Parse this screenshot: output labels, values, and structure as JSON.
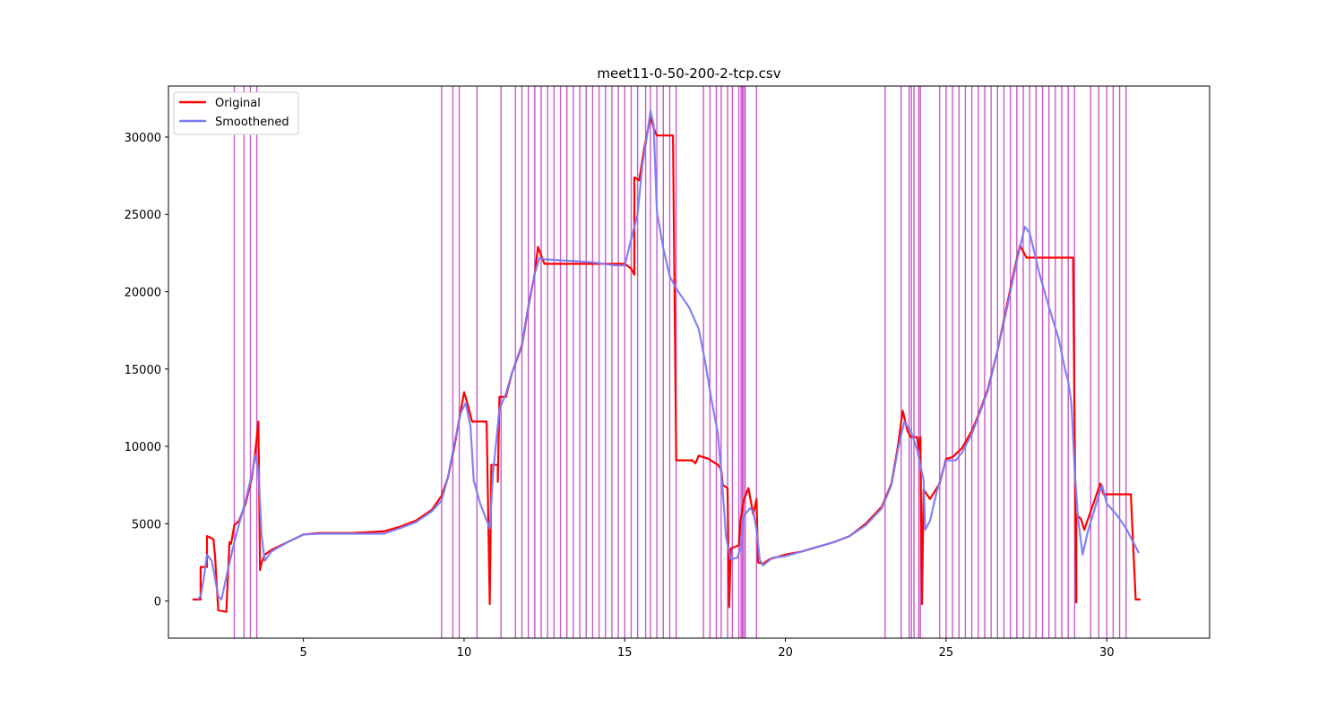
{
  "chart_data": {
    "type": "line",
    "title": "meet11-0-50-200-2-tcp.csv",
    "xlabel": "",
    "ylabel": "",
    "xlim": [
      0.8,
      33.2
    ],
    "ylim": [
      -2400,
      33300
    ],
    "x_ticks": [
      5,
      10,
      15,
      20,
      25,
      30
    ],
    "y_ticks": [
      0,
      5000,
      10000,
      15000,
      20000,
      25000,
      30000
    ],
    "legend": {
      "placement": "top-left"
    },
    "grid": false,
    "series": [
      {
        "name": "Original",
        "color": "#ff0000",
        "points": [
          [
            1.55,
            100
          ],
          [
            1.8,
            100
          ],
          [
            1.8,
            2200
          ],
          [
            2.0,
            2200
          ],
          [
            2.0,
            4200
          ],
          [
            2.2,
            4000
          ],
          [
            2.25,
            2900
          ],
          [
            2.35,
            -600
          ],
          [
            2.6,
            -700
          ],
          [
            2.7,
            3800
          ],
          [
            2.75,
            3700
          ],
          [
            2.85,
            4900
          ],
          [
            3.0,
            5200
          ],
          [
            3.2,
            6300
          ],
          [
            3.4,
            8000
          ],
          [
            3.5,
            9600
          ],
          [
            3.55,
            10600
          ],
          [
            3.6,
            11600
          ],
          [
            3.65,
            2000
          ],
          [
            3.7,
            2500
          ],
          [
            3.8,
            3000
          ],
          [
            4.0,
            3300
          ],
          [
            4.5,
            3800
          ],
          [
            5.0,
            4300
          ],
          [
            5.5,
            4400
          ],
          [
            6.5,
            4400
          ],
          [
            7.5,
            4500
          ],
          [
            8.0,
            4800
          ],
          [
            8.5,
            5200
          ],
          [
            9.0,
            5900
          ],
          [
            9.3,
            6800
          ],
          [
            9.5,
            8000
          ],
          [
            9.7,
            10000
          ],
          [
            9.85,
            11800
          ],
          [
            10.0,
            13500
          ],
          [
            10.1,
            12800
          ],
          [
            10.25,
            11600
          ],
          [
            10.7,
            11600
          ],
          [
            10.8,
            -200
          ],
          [
            10.85,
            8800
          ],
          [
            11.05,
            8800
          ],
          [
            11.05,
            7700
          ],
          [
            11.1,
            13200
          ],
          [
            11.3,
            13200
          ],
          [
            11.5,
            14800
          ],
          [
            11.8,
            16500
          ],
          [
            12.0,
            19000
          ],
          [
            12.2,
            21200
          ],
          [
            12.3,
            22900
          ],
          [
            12.5,
            21800
          ],
          [
            15.0,
            21800
          ],
          [
            15.2,
            21500
          ],
          [
            15.3,
            21100
          ],
          [
            15.3,
            27400
          ],
          [
            15.45,
            27200
          ],
          [
            15.6,
            29200
          ],
          [
            15.8,
            31300
          ],
          [
            15.95,
            30300
          ],
          [
            16.0,
            30100
          ],
          [
            16.5,
            30100
          ],
          [
            16.6,
            9100
          ],
          [
            17.1,
            9100
          ],
          [
            17.2,
            8900
          ],
          [
            17.3,
            9400
          ],
          [
            17.6,
            9200
          ],
          [
            17.9,
            8800
          ],
          [
            18.0,
            8500
          ],
          [
            18.05,
            7500
          ],
          [
            18.2,
            7300
          ],
          [
            18.25,
            -400
          ],
          [
            18.3,
            3400
          ],
          [
            18.55,
            3600
          ],
          [
            18.6,
            5200
          ],
          [
            18.7,
            6500
          ],
          [
            18.85,
            7300
          ],
          [
            19.0,
            5600
          ],
          [
            19.1,
            6600
          ],
          [
            19.15,
            2500
          ],
          [
            19.3,
            2400
          ],
          [
            19.5,
            2700
          ],
          [
            20.0,
            3000
          ],
          [
            20.5,
            3200
          ],
          [
            21.0,
            3500
          ],
          [
            21.5,
            3800
          ],
          [
            22.0,
            4200
          ],
          [
            22.5,
            5000
          ],
          [
            23.0,
            6100
          ],
          [
            23.3,
            7600
          ],
          [
            23.5,
            10000
          ],
          [
            23.65,
            12300
          ],
          [
            23.8,
            11000
          ],
          [
            23.9,
            10600
          ],
          [
            24.1,
            10600
          ],
          [
            24.15,
            9800
          ],
          [
            24.2,
            10600
          ],
          [
            24.25,
            -200
          ],
          [
            24.3,
            7200
          ],
          [
            24.5,
            6600
          ],
          [
            24.8,
            7600
          ],
          [
            25.0,
            9200
          ],
          [
            25.2,
            9300
          ],
          [
            25.5,
            9900
          ],
          [
            25.8,
            11000
          ],
          [
            26.0,
            12000
          ],
          [
            26.3,
            13700
          ],
          [
            26.6,
            16200
          ],
          [
            26.9,
            19200
          ],
          [
            27.1,
            21200
          ],
          [
            27.3,
            23000
          ],
          [
            27.5,
            22200
          ],
          [
            28.95,
            22200
          ],
          [
            29.05,
            -100
          ],
          [
            29.05,
            5600
          ],
          [
            29.2,
            5300
          ],
          [
            29.3,
            4600
          ],
          [
            29.5,
            5800
          ],
          [
            29.8,
            7600
          ],
          [
            29.9,
            6900
          ],
          [
            30.75,
            6900
          ],
          [
            30.9,
            100
          ],
          [
            31.05,
            100
          ]
        ]
      },
      {
        "name": "Smoothened",
        "color": "#7b7bf5",
        "points": [
          [
            1.7,
            100
          ],
          [
            1.8,
            300
          ],
          [
            1.9,
            1500
          ],
          [
            2.0,
            3000
          ],
          [
            2.15,
            2600
          ],
          [
            2.35,
            300
          ],
          [
            2.45,
            100
          ],
          [
            2.65,
            2000
          ],
          [
            2.85,
            3800
          ],
          [
            3.0,
            5000
          ],
          [
            3.2,
            6500
          ],
          [
            3.4,
            8200
          ],
          [
            3.5,
            9400
          ],
          [
            3.6,
            8500
          ],
          [
            3.7,
            4200
          ],
          [
            3.8,
            2600
          ],
          [
            4.0,
            3200
          ],
          [
            4.5,
            3800
          ],
          [
            5.0,
            4300
          ],
          [
            5.5,
            4350
          ],
          [
            7.5,
            4350
          ],
          [
            8.0,
            4700
          ],
          [
            8.5,
            5100
          ],
          [
            9.0,
            5800
          ],
          [
            9.3,
            6500
          ],
          [
            9.5,
            8000
          ],
          [
            9.7,
            10200
          ],
          [
            9.9,
            12200
          ],
          [
            10.05,
            12800
          ],
          [
            10.2,
            11300
          ],
          [
            10.3,
            7800
          ],
          [
            10.5,
            6300
          ],
          [
            10.8,
            4700
          ],
          [
            10.9,
            8200
          ],
          [
            11.1,
            12400
          ],
          [
            11.3,
            13400
          ],
          [
            11.5,
            14800
          ],
          [
            11.8,
            16600
          ],
          [
            12.0,
            19100
          ],
          [
            12.2,
            21200
          ],
          [
            12.35,
            22200
          ],
          [
            12.5,
            22100
          ],
          [
            14.0,
            21900
          ],
          [
            14.7,
            21700
          ],
          [
            15.0,
            21700
          ],
          [
            15.2,
            23400
          ],
          [
            15.4,
            25000
          ],
          [
            15.55,
            28200
          ],
          [
            15.7,
            30200
          ],
          [
            15.8,
            31700
          ],
          [
            15.9,
            30800
          ],
          [
            16.0,
            25200
          ],
          [
            16.2,
            22800
          ],
          [
            16.4,
            21000
          ],
          [
            16.6,
            20200
          ],
          [
            17.0,
            19000
          ],
          [
            17.3,
            17600
          ],
          [
            17.5,
            15500
          ],
          [
            17.7,
            13000
          ],
          [
            17.9,
            10800
          ],
          [
            18.0,
            8300
          ],
          [
            18.1,
            5700
          ],
          [
            18.15,
            4200
          ],
          [
            18.3,
            2700
          ],
          [
            18.5,
            2800
          ],
          [
            18.6,
            3400
          ],
          [
            18.7,
            5500
          ],
          [
            18.9,
            6000
          ],
          [
            19.0,
            5800
          ],
          [
            19.1,
            4600
          ],
          [
            19.2,
            2700
          ],
          [
            19.3,
            2300
          ],
          [
            19.6,
            2800
          ],
          [
            20.0,
            2900
          ],
          [
            20.5,
            3200
          ],
          [
            21.0,
            3500
          ],
          [
            21.5,
            3800
          ],
          [
            22.0,
            4200
          ],
          [
            22.5,
            4900
          ],
          [
            23.0,
            6000
          ],
          [
            23.3,
            7500
          ],
          [
            23.5,
            9800
          ],
          [
            23.7,
            11600
          ],
          [
            23.9,
            11000
          ],
          [
            24.1,
            9800
          ],
          [
            24.3,
            7800
          ],
          [
            24.35,
            4600
          ],
          [
            24.5,
            5200
          ],
          [
            24.7,
            7000
          ],
          [
            25.0,
            9100
          ],
          [
            25.3,
            9100
          ],
          [
            25.5,
            9600
          ],
          [
            25.8,
            10800
          ],
          [
            26.0,
            11900
          ],
          [
            26.3,
            13600
          ],
          [
            26.6,
            16200
          ],
          [
            26.9,
            19000
          ],
          [
            27.1,
            21000
          ],
          [
            27.3,
            22900
          ],
          [
            27.45,
            24200
          ],
          [
            27.6,
            23800
          ],
          [
            27.9,
            21200
          ],
          [
            28.2,
            19000
          ],
          [
            28.5,
            17000
          ],
          [
            28.7,
            15000
          ],
          [
            28.8,
            14200
          ],
          [
            28.9,
            12800
          ],
          [
            29.0,
            8500
          ],
          [
            29.1,
            5400
          ],
          [
            29.25,
            3000
          ],
          [
            29.4,
            4400
          ],
          [
            29.6,
            5800
          ],
          [
            29.85,
            7500
          ],
          [
            30.0,
            6300
          ],
          [
            30.3,
            5600
          ],
          [
            30.6,
            4700
          ],
          [
            30.9,
            3500
          ],
          [
            31.0,
            3100
          ]
        ]
      }
    ],
    "vertical_markers": {
      "color": "#c040c0",
      "x": [
        2.85,
        3.15,
        3.35,
        3.55,
        9.3,
        9.65,
        9.85,
        10.4,
        11.15,
        11.6,
        11.8,
        12.0,
        12.2,
        12.4,
        12.6,
        12.8,
        13.0,
        13.2,
        13.4,
        13.6,
        13.8,
        14.0,
        14.2,
        14.4,
        14.6,
        14.8,
        15.0,
        15.2,
        15.4,
        15.65,
        15.8,
        16.0,
        16.2,
        16.4,
        16.6,
        17.45,
        17.65,
        17.85,
        18.0,
        18.2,
        18.35,
        18.55,
        18.62,
        18.66,
        18.7,
        18.75,
        19.1,
        23.1,
        23.6,
        23.85,
        23.92,
        24.0,
        24.15,
        24.2,
        24.8,
        25.0,
        25.2,
        25.4,
        25.6,
        25.8,
        26.0,
        26.2,
        26.4,
        26.6,
        26.8,
        27.0,
        27.2,
        27.4,
        27.6,
        27.8,
        28.0,
        28.2,
        28.4,
        28.6,
        28.8,
        29.0,
        29.5,
        29.75,
        30.0,
        30.2,
        30.4,
        30.6
      ]
    }
  }
}
